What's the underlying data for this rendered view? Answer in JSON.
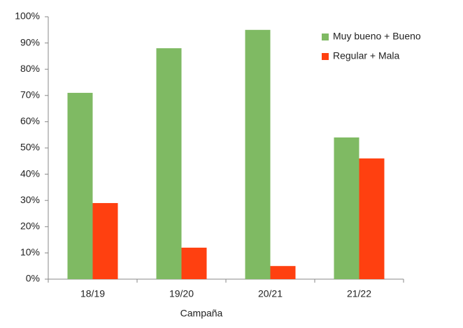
{
  "chart_data": {
    "type": "bar",
    "x_label": "Campaña",
    "categories": [
      "18/19",
      "19/20",
      "20/21",
      "21/22"
    ],
    "series": [
      {
        "name": "Muy bueno + Bueno",
        "color": "#7fba63",
        "values": [
          71,
          88,
          95,
          54
        ]
      },
      {
        "name": "Regular + Mala",
        "color": "#ff4010",
        "values": [
          29,
          12,
          5,
          46
        ]
      }
    ],
    "ylim": [
      0,
      100
    ],
    "yticks": [
      {
        "value": 0,
        "label": "0%"
      },
      {
        "value": 10,
        "label": "10%"
      },
      {
        "value": 20,
        "label": "20%"
      },
      {
        "value": 30,
        "label": "30%"
      },
      {
        "value": 40,
        "label": "40%"
      },
      {
        "value": 50,
        "label": "50%"
      },
      {
        "value": 60,
        "label": "60%"
      },
      {
        "value": 70,
        "label": "70%"
      },
      {
        "value": 80,
        "label": "80%"
      },
      {
        "value": 90,
        "label": "90%"
      },
      {
        "value": 100,
        "label": "100%"
      }
    ],
    "grid": false,
    "legend": "upper right"
  }
}
